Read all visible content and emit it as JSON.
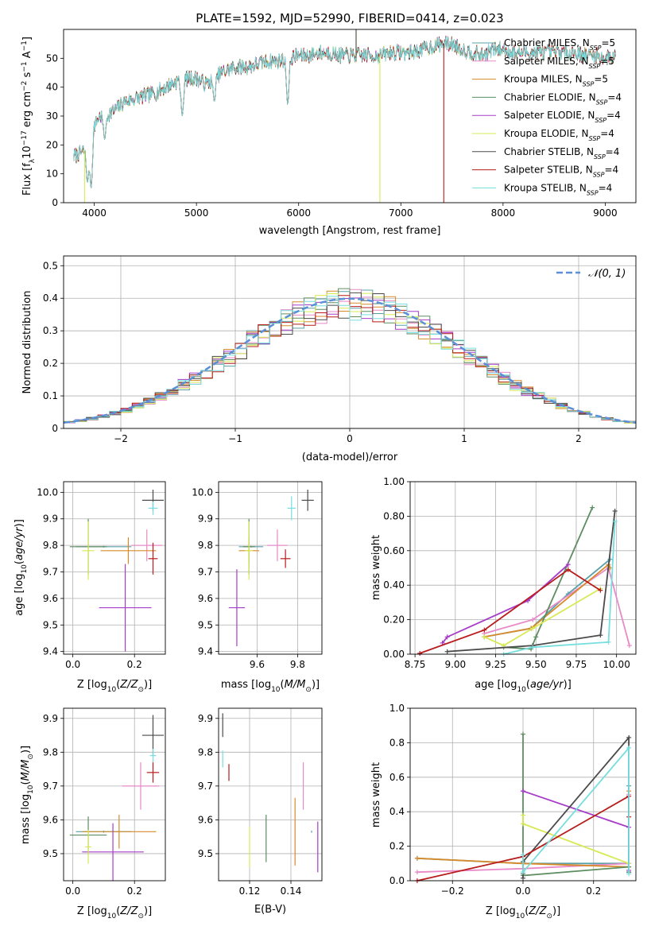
{
  "figure": {
    "title": "PLATE=1592, MJD=52990, FIBERID=0414, z=0.023"
  },
  "colors": {
    "Chabrier MILES": "#5aa0a8",
    "Salpeter MILES": "#e889c8",
    "Kroupa MILES": "#d78a2a",
    "Chabrier ELODIE": "#5d8d60",
    "Salpeter ELODIE": "#a63cc8",
    "Kroupa ELODIE": "#d7ea55",
    "Chabrier STELIB": "#4b4b4b",
    "Salpeter STELIB": "#b81c1c",
    "Kroupa STELIB": "#76dede",
    "gauss": "#5b8fd6"
  },
  "legend_spectrum": [
    {
      "model": "Chabrier MILES",
      "label": "Chabrier MILES, N",
      "sub": "SSP",
      "suffix": "=5"
    },
    {
      "model": "Salpeter MILES",
      "label": "Salpeter MILES, N",
      "sub": "SSP",
      "suffix": "=5"
    },
    {
      "model": "Kroupa MILES",
      "label": "Kroupa MILES, N",
      "sub": "SSP",
      "suffix": "=5"
    },
    {
      "model": "Chabrier ELODIE",
      "label": "Chabrier ELODIE, N",
      "sub": "SSP",
      "suffix": "=4"
    },
    {
      "model": "Salpeter ELODIE",
      "label": "Salpeter ELODIE, N",
      "sub": "SSP",
      "suffix": "=4"
    },
    {
      "model": "Kroupa ELODIE",
      "label": "Kroupa ELODIE, N",
      "sub": "SSP",
      "suffix": "=4"
    },
    {
      "model": "Chabrier STELIB",
      "label": "Chabrier STELIB, N",
      "sub": "SSP",
      "suffix": "=4"
    },
    {
      "model": "Salpeter STELIB",
      "label": "Salpeter STELIB, N",
      "sub": "SSP",
      "suffix": "=4"
    },
    {
      "model": "Kroupa STELIB",
      "label": "Kroupa STELIB, N",
      "sub": "SSP",
      "suffix": "=4"
    }
  ],
  "legend_gauss": "𝒩(0, 1)",
  "chart_data": [
    {
      "id": "spectrum",
      "type": "line",
      "xlabel": "wavelength [Angstrom, rest frame]",
      "ylabel": "Flux [f",
      "ylabel_parts": [
        "Flux [f",
        "λ",
        "10",
        "−17",
        " erg cm",
        "−2",
        " s",
        "−1",
        " A",
        "−1",
        "]"
      ],
      "xlim": [
        3700,
        9300
      ],
      "ylim": [
        0,
        60
      ],
      "xticks": [
        4000,
        5000,
        6000,
        7000,
        8000,
        9000
      ],
      "yticks": [
        0,
        10,
        20,
        30,
        40,
        50
      ],
      "grid": false,
      "continuum_x": [
        3800,
        3850,
        3900,
        3950,
        4000,
        4050,
        4100,
        4200,
        4300,
        4400,
        4500,
        4600,
        4700,
        4800,
        4900,
        5000,
        5100,
        5200,
        5300,
        5400,
        5500,
        5600,
        5700,
        5800,
        5900,
        6000,
        6100,
        6200,
        6300,
        6400,
        6500,
        6600,
        6700,
        6800,
        6900,
        7000,
        7100,
        7200,
        7300,
        7400,
        7500,
        7600,
        7700,
        7800,
        7900,
        8000,
        8100,
        8200,
        8300,
        8400,
        8500,
        8600,
        8700,
        8800,
        8900,
        9000,
        9100
      ],
      "continuum_y": [
        16,
        17,
        18,
        19,
        27,
        30,
        30,
        32,
        35,
        36,
        37,
        38,
        40,
        42,
        43,
        43,
        41,
        44,
        46,
        47,
        47,
        48,
        49,
        49,
        50,
        51,
        51,
        52,
        52,
        51,
        51,
        51,
        51,
        51,
        52,
        52,
        52,
        53,
        54,
        55,
        55,
        53,
        52,
        51,
        53,
        53,
        52,
        52,
        52,
        52,
        52,
        52,
        52,
        51,
        51,
        50,
        51
      ],
      "noise_amplitude": 2.5,
      "dips": [
        {
          "x": 3934,
          "y": 7
        },
        {
          "x": 3969,
          "y": 5
        },
        {
          "x": 4102,
          "y": 22
        },
        {
          "x": 4861,
          "y": 30
        },
        {
          "x": 5175,
          "y": 35
        },
        {
          "x": 5893,
          "y": 34
        }
      ],
      "spikes": [
        {
          "model": "Kroupa ELODIE",
          "x": 3905,
          "y": 0
        },
        {
          "model": "Kroupa ELODIE",
          "x": 6795,
          "y": 0
        },
        {
          "model": "Salpeter STELIB",
          "x": 7420,
          "y": 0
        },
        {
          "model": "Kroupa ELODIE",
          "x": 6563,
          "y": 60
        },
        {
          "model": "Chabrier STELIB",
          "x": 6562,
          "y": 60
        }
      ]
    },
    {
      "id": "residuals",
      "type": "histogram",
      "xlabel": "(data-model)/error",
      "ylabel": "Normed distribution",
      "xlim": [
        -2.5,
        2.5
      ],
      "ylim": [
        0,
        0.53
      ],
      "xticks": [
        -2,
        -1,
        0,
        1,
        2
      ],
      "yticks": [
        0.0,
        0.1,
        0.2,
        0.3,
        0.4,
        0.5
      ],
      "bin_width": 0.1,
      "grid": true,
      "gaussian": {
        "mean": 0,
        "sigma": 1,
        "label": "𝒩(0, 1)",
        "style": "dashed"
      }
    },
    {
      "id": "age_vs_Z",
      "type": "scatter_errorbar",
      "xlabel": "Z [log",
      "ylabel": "age  [log",
      "xlim": [
        -0.03,
        0.3
      ],
      "ylim": [
        9.39,
        10.04
      ],
      "xticks": [
        0.0,
        0.2
      ],
      "yticks": [
        9.4,
        9.5,
        9.6,
        9.7,
        9.8,
        9.9,
        10.0
      ],
      "grid": true,
      "points": [
        {
          "model": "Chabrier MILES",
          "x": 0.1,
          "y": 9.795,
          "xerr": 0.09,
          "yerr": 0.0
        },
        {
          "model": "Salpeter MILES",
          "x": 0.24,
          "y": 9.8,
          "xerr": 0.05,
          "yerr": 0.06
        },
        {
          "model": "Kroupa MILES",
          "x": 0.18,
          "y": 9.78,
          "xerr": 0.09,
          "yerr": 0.05
        },
        {
          "model": "Chabrier ELODIE",
          "x": 0.05,
          "y": 9.795,
          "xerr": 0.06,
          "yerr": 0.105
        },
        {
          "model": "Salpeter ELODIE",
          "x": 0.17,
          "y": 9.565,
          "xerr": 0.085,
          "yerr": 0.165
        },
        {
          "model": "Kroupa ELODIE",
          "x": 0.05,
          "y": 9.78,
          "xerr": 0.02,
          "yerr": 0.11
        },
        {
          "model": "Chabrier STELIB",
          "x": 0.26,
          "y": 9.97,
          "xerr": 0.035,
          "yerr": 0.04
        },
        {
          "model": "Salpeter STELIB",
          "x": 0.26,
          "y": 9.75,
          "xerr": 0.015,
          "yerr": 0.06
        },
        {
          "model": "Kroupa STELIB",
          "x": 0.26,
          "y": 9.94,
          "xerr": 0.015,
          "yerr": 0.025
        }
      ]
    },
    {
      "id": "age_vs_mass",
      "type": "scatter_errorbar",
      "xlabel": "mass [log",
      "xlim": [
        9.41,
        9.92
      ],
      "ylim": [
        9.39,
        10.04
      ],
      "xticks": [
        9.6,
        9.8
      ],
      "yticks": [
        9.4,
        9.5,
        9.6,
        9.7,
        9.8,
        9.9,
        10.0
      ],
      "grid": true,
      "points": [
        {
          "model": "Chabrier MILES",
          "x": 9.57,
          "y": 9.795,
          "xerr": 0.06,
          "yerr": 0.0
        },
        {
          "model": "Salpeter MILES",
          "x": 9.7,
          "y": 9.8,
          "xerr": 0.05,
          "yerr": 0.06
        },
        {
          "model": "Kroupa MILES",
          "x": 9.56,
          "y": 9.78,
          "xerr": 0.05,
          "yerr": 0.05
        },
        {
          "model": "Chabrier ELODIE",
          "x": 9.56,
          "y": 9.795,
          "xerr": 0.03,
          "yerr": 0.105
        },
        {
          "model": "Salpeter ELODIE",
          "x": 9.5,
          "y": 9.565,
          "xerr": 0.04,
          "yerr": 0.145
        },
        {
          "model": "Kroupa ELODIE",
          "x": 9.56,
          "y": 9.78,
          "xerr": 0.02,
          "yerr": 0.11
        },
        {
          "model": "Chabrier STELIB",
          "x": 9.85,
          "y": 9.97,
          "xerr": 0.03,
          "yerr": 0.04
        },
        {
          "model": "Salpeter STELIB",
          "x": 9.74,
          "y": 9.75,
          "xerr": 0.025,
          "yerr": 0.035
        },
        {
          "model": "Kroupa STELIB",
          "x": 9.77,
          "y": 9.94,
          "xerr": 0.02,
          "yerr": 0.045
        }
      ]
    },
    {
      "id": "weight_vs_age",
      "type": "line",
      "xlabel": "age  [log",
      "ylabel": "mass weight",
      "xlim": [
        8.72,
        10.12
      ],
      "ylim": [
        0,
        1
      ],
      "xticks": [
        8.75,
        9.0,
        9.25,
        9.5,
        9.75,
        10.0
      ],
      "yticks": [
        0.0,
        0.2,
        0.4,
        0.6,
        0.8,
        1.0
      ],
      "grid": true,
      "series": [
        {
          "model": "Chabrier MILES",
          "x": [
            9.18,
            9.47,
            9.7,
            9.96
          ],
          "y": [
            0.1,
            0.15,
            0.35,
            0.55
          ]
        },
        {
          "model": "Salpeter MILES",
          "x": [
            9.18,
            9.48,
            9.95,
            10.08
          ],
          "y": [
            0.12,
            0.2,
            0.5,
            0.05
          ]
        },
        {
          "model": "Kroupa MILES",
          "x": [
            9.18,
            9.47,
            9.95,
            9.96
          ],
          "y": [
            0.1,
            0.15,
            0.52,
            0.5
          ]
        },
        {
          "model": "Chabrier ELODIE",
          "x": [
            9.3,
            9.47,
            9.5,
            9.85
          ],
          "y": [
            0.04,
            0.03,
            0.1,
            0.85
          ]
        },
        {
          "model": "Salpeter ELODIE",
          "x": [
            8.92,
            8.95,
            9.45,
            9.7
          ],
          "y": [
            0.065,
            0.1,
            0.31,
            0.52
          ]
        },
        {
          "model": "Kroupa ELODIE",
          "x": [
            9.18,
            9.3,
            9.48,
            9.9
          ],
          "y": [
            0.1,
            0.05,
            0.15,
            0.38
          ]
        },
        {
          "model": "Chabrier STELIB",
          "x": [
            8.95,
            9.48,
            9.9,
            9.99
          ],
          "y": [
            0.015,
            0.05,
            0.11,
            0.83
          ]
        },
        {
          "model": "Salpeter STELIB",
          "x": [
            8.78,
            9.18,
            9.7,
            9.9
          ],
          "y": [
            0.005,
            0.14,
            0.49,
            0.37
          ]
        },
        {
          "model": "Kroupa STELIB",
          "x": [
            9.3,
            9.48,
            9.95,
            9.99
          ],
          "y": [
            0.0,
            0.04,
            0.07,
            0.77
          ]
        }
      ]
    },
    {
      "id": "mass_vs_Z",
      "type": "scatter_errorbar",
      "xlabel": "Z [log",
      "ylabel": "mass [log",
      "xlim": [
        -0.03,
        0.3
      ],
      "ylim": [
        9.42,
        9.93
      ],
      "xticks": [
        0.0,
        0.2
      ],
      "yticks": [
        9.5,
        9.6,
        9.7,
        9.8,
        9.9
      ],
      "grid": true,
      "points": [
        {
          "model": "Chabrier MILES",
          "x": 0.1,
          "y": 9.565,
          "xerr": 0.09,
          "yerr": 0.0
        },
        {
          "model": "Salpeter MILES",
          "x": 0.22,
          "y": 9.7,
          "xerr": 0.06,
          "yerr": 0.07
        },
        {
          "model": "Kroupa MILES",
          "x": 0.15,
          "y": 9.565,
          "xerr": 0.12,
          "yerr": 0.05
        },
        {
          "model": "Chabrier ELODIE",
          "x": 0.05,
          "y": 9.555,
          "xerr": 0.06,
          "yerr": 0.055
        },
        {
          "model": "Salpeter ELODIE",
          "x": 0.13,
          "y": 9.505,
          "xerr": 0.1,
          "yerr": 0.085
        },
        {
          "model": "Kroupa ELODIE",
          "x": 0.05,
          "y": 9.52,
          "xerr": 0.01,
          "yerr": 0.05
        },
        {
          "model": "Chabrier STELIB",
          "x": 0.26,
          "y": 9.85,
          "xerr": 0.035,
          "yerr": 0.06
        },
        {
          "model": "Salpeter STELIB",
          "x": 0.26,
          "y": 9.74,
          "xerr": 0.02,
          "yerr": 0.03
        },
        {
          "model": "Kroupa STELIB",
          "x": 0.26,
          "y": 9.79,
          "xerr": 0.01,
          "yerr": 0.02
        }
      ]
    },
    {
      "id": "mass_vs_ebv",
      "type": "scatter_errorbar",
      "xlabel": "E(B-V)",
      "xlim": [
        0.105,
        0.155
      ],
      "ylim": [
        9.42,
        9.93
      ],
      "xticks": [
        0.12,
        0.14
      ],
      "yticks": [
        9.5,
        9.6,
        9.7,
        9.8,
        9.9
      ],
      "grid": true,
      "points": [
        {
          "model": "Chabrier MILES",
          "x": 0.15,
          "y": 9.565,
          "xerr": 0.0,
          "yerr": 0.0
        },
        {
          "model": "Salpeter MILES",
          "x": 0.146,
          "y": 9.7,
          "xerr": 0.0,
          "yerr": 0.07
        },
        {
          "model": "Kroupa MILES",
          "x": 0.142,
          "y": 9.565,
          "xerr": 0.0,
          "yerr": 0.1
        },
        {
          "model": "Chabrier ELODIE",
          "x": 0.128,
          "y": 9.545,
          "xerr": 0.0,
          "yerr": 0.07
        },
        {
          "model": "Salpeter ELODIE",
          "x": 0.153,
          "y": 9.52,
          "xerr": 0.0,
          "yerr": 0.075
        },
        {
          "model": "Kroupa ELODIE",
          "x": 0.12,
          "y": 9.52,
          "xerr": 0.0,
          "yerr": 0.06
        },
        {
          "model": "Chabrier STELIB",
          "x": 0.107,
          "y": 9.88,
          "xerr": 0.0,
          "yerr": 0.035
        },
        {
          "model": "Salpeter STELIB",
          "x": 0.11,
          "y": 9.74,
          "xerr": 0.0,
          "yerr": 0.025
        },
        {
          "model": "Kroupa STELIB",
          "x": 0.107,
          "y": 9.78,
          "xerr": 0.0,
          "yerr": 0.025
        }
      ]
    },
    {
      "id": "weight_vs_Z",
      "type": "line",
      "xlabel": "Z [log",
      "ylabel": "mass weight",
      "xlim": [
        -0.32,
        0.32
      ],
      "ylim": [
        0,
        1
      ],
      "xticks": [
        -0.2,
        0.0,
        0.2
      ],
      "yticks": [
        0.0,
        0.2,
        0.4,
        0.6,
        0.8,
        1.0
      ],
      "grid": true,
      "series": [
        {
          "model": "Chabrier MILES",
          "x": [
            -0.3,
            0.0,
            0.3,
            0.3
          ],
          "y": [
            0.13,
            0.1,
            0.1,
            0.55
          ]
        },
        {
          "model": "Salpeter MILES",
          "x": [
            -0.3,
            0.0,
            0.3,
            0.3
          ],
          "y": [
            0.05,
            0.07,
            0.1,
            0.5
          ]
        },
        {
          "model": "Kroupa MILES",
          "x": [
            -0.3,
            0.0,
            0.3,
            0.3
          ],
          "y": [
            0.13,
            0.1,
            0.08,
            0.52
          ]
        },
        {
          "model": "Chabrier ELODIE",
          "x": [
            0.0,
            0.0,
            0.0,
            0.3
          ],
          "y": [
            0.85,
            0.04,
            0.03,
            0.08
          ]
        },
        {
          "model": "Salpeter ELODIE",
          "x": [
            0.0,
            0.0,
            0.3,
            0.3
          ],
          "y": [
            0.52,
            0.52,
            0.31,
            0.06
          ]
        },
        {
          "model": "Kroupa ELODIE",
          "x": [
            0.0,
            0.0,
            0.0,
            0.3
          ],
          "y": [
            0.38,
            0.33,
            0.33,
            0.1
          ]
        },
        {
          "model": "Chabrier STELIB",
          "x": [
            0.0,
            0.0,
            0.3,
            0.3
          ],
          "y": [
            0.015,
            0.11,
            0.83,
            0.05
          ]
        },
        {
          "model": "Salpeter STELIB",
          "x": [
            -0.3,
            0.0,
            0.3,
            0.3
          ],
          "y": [
            0.0,
            0.14,
            0.49,
            0.37
          ]
        },
        {
          "model": "Kroupa STELIB",
          "x": [
            0.0,
            0.0,
            0.3,
            0.3
          ],
          "y": [
            0.15,
            0.05,
            0.77,
            0.04
          ]
        }
      ]
    }
  ]
}
